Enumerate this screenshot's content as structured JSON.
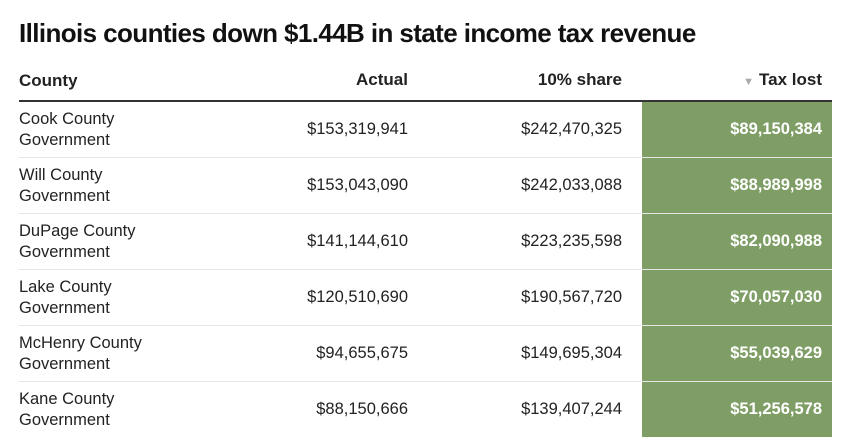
{
  "title": "Illinois counties down $1.44B in state income tax revenue",
  "columns": [
    "County",
    "Actual",
    "10% share",
    "Tax lost"
  ],
  "sort_icon": "triangle-down-icon",
  "highlight_color": "#7f9e66",
  "rows": [
    {
      "county": "Cook County Government",
      "actual": "$153,319,941",
      "share": "$242,470,325",
      "lost": "$89,150,384"
    },
    {
      "county": "Will County Government",
      "actual": "$153,043,090",
      "share": "$242,033,088",
      "lost": "$88,989,998"
    },
    {
      "county": "DuPage County Government",
      "actual": "$141,144,610",
      "share": "$223,235,598",
      "lost": "$82,090,988"
    },
    {
      "county": "Lake County Government",
      "actual": "$120,510,690",
      "share": "$190,567,720",
      "lost": "$70,057,030"
    },
    {
      "county": "McHenry County Government",
      "actual": "$94,655,675",
      "share": "$149,695,304",
      "lost": "$55,039,629"
    },
    {
      "county": "Kane County Government",
      "actual": "$88,150,666",
      "share": "$139,407,244",
      "lost": "$51,256,578"
    }
  ]
}
